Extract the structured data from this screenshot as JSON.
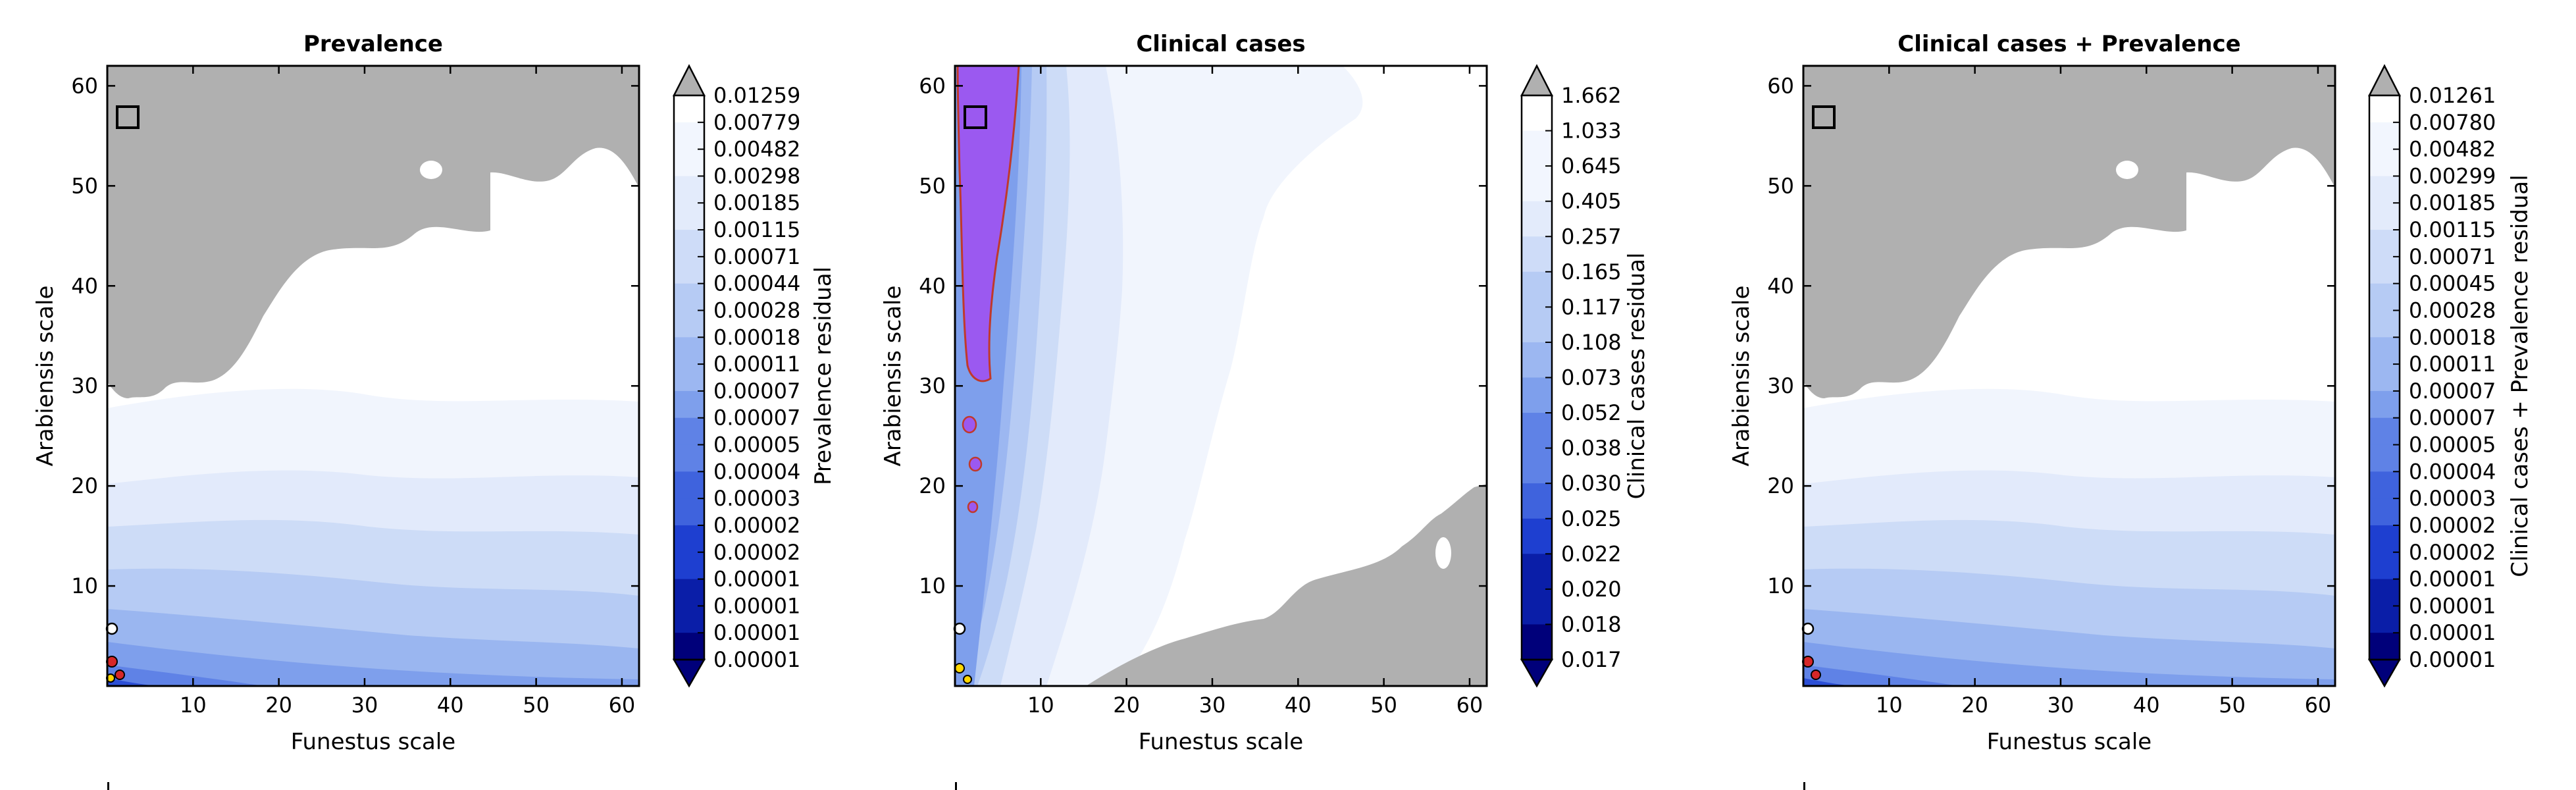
{
  "figure": {
    "panels": [
      {
        "title": "Prevalence",
        "xlabel": "Funestus scale",
        "ylabel": "Arabiensis scale",
        "xticks": [
          "10",
          "20",
          "30",
          "40",
          "50",
          "60"
        ],
        "yticks": [
          "10",
          "20",
          "30",
          "40",
          "50",
          "60"
        ],
        "colorbar_label": "Prevalence residual",
        "colorbar_ticks": [
          "0.01259",
          "0.00779",
          "0.00482",
          "0.00298",
          "0.00185",
          "0.00115",
          "0.00071",
          "0.00044",
          "0.00028",
          "0.00018",
          "0.00011",
          "0.00007",
          "0.00007",
          "0.00005",
          "0.00004",
          "0.00003",
          "0.00002",
          "0.00002",
          "0.00001",
          "0.00001",
          "0.00001",
          "0.00001"
        ]
      },
      {
        "title": "Clinical cases",
        "xlabel": "Funestus scale",
        "ylabel": "Arabiensis scale",
        "xticks": [
          "10",
          "20",
          "30",
          "40",
          "50",
          "60"
        ],
        "yticks": [
          "10",
          "20",
          "30",
          "40",
          "50",
          "60"
        ],
        "colorbar_label": "Clinical cases residual",
        "colorbar_ticks": [
          "1.662",
          "1.033",
          "0.645",
          "0.405",
          "0.257",
          "0.165",
          "0.117",
          "0.108",
          "0.073",
          "0.052",
          "0.038",
          "0.030",
          "0.025",
          "0.022",
          "0.020",
          "0.018",
          "0.017"
        ]
      },
      {
        "title": "Clinical cases + Prevalence",
        "xlabel": "Funestus scale",
        "ylabel": "Arabiensis scale",
        "xticks": [
          "10",
          "20",
          "30",
          "40",
          "50",
          "60"
        ],
        "yticks": [
          "10",
          "20",
          "30",
          "40",
          "50",
          "60"
        ],
        "colorbar_label": "Clinical cases + Prevalence residual",
        "colorbar_ticks": [
          "0.01261",
          "0.00780",
          "0.00482",
          "0.00299",
          "0.00185",
          "0.00115",
          "0.00071",
          "0.00045",
          "0.00028",
          "0.00018",
          "0.00011",
          "0.00007",
          "0.00007",
          "0.00005",
          "0.00004",
          "0.00003",
          "0.00002",
          "0.00002",
          "0.00001",
          "0.00001",
          "0.00001",
          "0.00001"
        ]
      }
    ]
  },
  "chart_data": [
    {
      "type": "heatmap",
      "title": "Prevalence",
      "xlabel": "Funestus scale",
      "ylabel": "Arabiensis scale",
      "xlim": [
        0,
        62
      ],
      "ylim": [
        0,
        62
      ],
      "colorbar_label": "Prevalence residual",
      "colorbar_levels": [
        0.01259,
        0.00779,
        0.00482,
        0.00298,
        0.00185,
        0.00115,
        0.00071,
        0.00044,
        0.00028,
        0.00018,
        0.00011,
        7e-05,
        7e-05,
        5e-05,
        4e-05,
        3e-05,
        2e-05,
        2e-05,
        1e-05,
        1e-05,
        1e-05,
        1e-05
      ],
      "colormap": [
        "#00007a",
        "#0a1ea8",
        "#1e3fd0",
        "#3f63dd",
        "#5f82e6",
        "#7e9fec",
        "#9cb7f1",
        "#b6cbf4",
        "#cedcf8",
        "#e3ebfb",
        "#f2f6fe",
        "#ffffff"
      ],
      "masked_color": "#b0b0b0",
      "selected_box": [
        2.4,
        57
      ]
    },
    {
      "type": "heatmap",
      "title": "Clinical cases",
      "xlabel": "Funestus scale",
      "ylabel": "Arabiensis scale",
      "xlim": [
        0,
        62
      ],
      "ylim": [
        0,
        62
      ],
      "colorbar_label": "Clinical cases residual",
      "colorbar_levels": [
        1.662,
        1.033,
        0.645,
        0.405,
        0.257,
        0.165,
        0.117,
        0.108,
        0.073,
        0.052,
        0.038,
        0.03,
        0.025,
        0.022,
        0.02,
        0.018,
        0.017
      ],
      "colormap": [
        "#00007a",
        "#0a1ea8",
        "#1e3fd0",
        "#3f63dd",
        "#5f82e6",
        "#7e9fec",
        "#9cb7f1",
        "#b6cbf4",
        "#cedcf8",
        "#e3ebfb",
        "#f2f6fe",
        "#ffffff"
      ],
      "highlight_color": "#9b59f0",
      "masked_color": "#b0b0b0",
      "selected_box": [
        2.4,
        57
      ]
    },
    {
      "type": "heatmap",
      "title": "Clinical cases + Prevalence",
      "xlabel": "Funestus scale",
      "ylabel": "Arabiensis scale",
      "xlim": [
        0,
        62
      ],
      "ylim": [
        0,
        62
      ],
      "colorbar_label": "Clinical cases + Prevalence residual",
      "colorbar_levels": [
        0.01261,
        0.0078,
        0.00482,
        0.00299,
        0.00185,
        0.00115,
        0.00071,
        0.00045,
        0.00028,
        0.00018,
        0.00011,
        7e-05,
        7e-05,
        5e-05,
        4e-05,
        3e-05,
        2e-05,
        2e-05,
        1e-05,
        1e-05,
        1e-05,
        1e-05
      ],
      "colormap": [
        "#00007a",
        "#0a1ea8",
        "#1e3fd0",
        "#3f63dd",
        "#5f82e6",
        "#7e9fec",
        "#9cb7f1",
        "#b6cbf4",
        "#cedcf8",
        "#e3ebfb",
        "#f2f6fe",
        "#ffffff"
      ],
      "masked_color": "#b0b0b0",
      "selected_box": [
        2.4,
        57
      ]
    }
  ]
}
